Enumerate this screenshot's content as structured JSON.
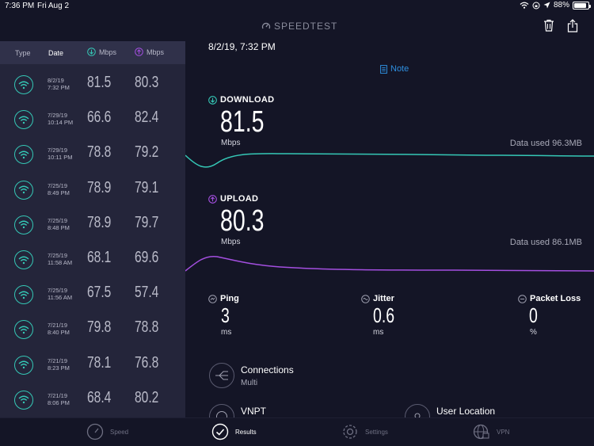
{
  "status_bar": {
    "time": "7:36 PM",
    "date": "Fri Aug 2",
    "battery": "88%",
    "battery_level": 0.88
  },
  "app": {
    "title": "SPEEDTEST"
  },
  "history": {
    "columns": {
      "type": "Type",
      "date": "Date",
      "download_unit": "Mbps",
      "upload_unit": "Mbps"
    },
    "rows": [
      {
        "date": "8/2/19",
        "time": "7:32 PM",
        "download": "81.5",
        "upload": "80.3"
      },
      {
        "date": "7/29/19",
        "time": "10:14 PM",
        "download": "66.6",
        "upload": "82.4"
      },
      {
        "date": "7/29/19",
        "time": "10:11 PM",
        "download": "78.8",
        "upload": "79.2"
      },
      {
        "date": "7/25/19",
        "time": "8:49 PM",
        "download": "78.9",
        "upload": "79.1"
      },
      {
        "date": "7/25/19",
        "time": "8:48 PM",
        "download": "78.9",
        "upload": "79.7"
      },
      {
        "date": "7/25/19",
        "time": "11:58 AM",
        "download": "68.1",
        "upload": "69.6"
      },
      {
        "date": "7/25/19",
        "time": "11:56 AM",
        "download": "67.5",
        "upload": "57.4"
      },
      {
        "date": "7/21/19",
        "time": "8:40 PM",
        "download": "79.8",
        "upload": "78.8"
      },
      {
        "date": "7/21/19",
        "time": "8:23 PM",
        "download": "78.1",
        "upload": "76.8"
      },
      {
        "date": "7/21/19",
        "time": "8:06 PM",
        "download": "68.4",
        "upload": "80.2"
      }
    ]
  },
  "detail": {
    "datetime": "8/2/19, 7:32 PM",
    "note_label": "Note",
    "download": {
      "label": "DOWNLOAD",
      "value": "81.5",
      "unit": "Mbps",
      "data_used": "Data used 96.3MB"
    },
    "upload": {
      "label": "UPLOAD",
      "value": "80.3",
      "unit": "Mbps",
      "data_used": "Data used 86.1MB"
    },
    "ping": {
      "label": "Ping",
      "value": "3",
      "unit": "ms"
    },
    "jitter": {
      "label": "Jitter",
      "value": "0.6",
      "unit": "ms"
    },
    "packet_loss": {
      "label": "Packet Loss",
      "value": "0",
      "unit": "%"
    },
    "connections": {
      "label": "Connections",
      "value": "Multi"
    },
    "isp": {
      "label": "VNPT"
    },
    "user_location": {
      "label": "User Location"
    }
  },
  "tabs": [
    {
      "label": "Speed",
      "active": false
    },
    {
      "label": "Results",
      "active": true
    },
    {
      "label": "Settings",
      "active": false
    },
    {
      "label": "VPN",
      "active": false
    }
  ],
  "colors": {
    "download": "#35c8b6",
    "upload": "#a44fe0",
    "accent": "#2e8ede",
    "background": "#141526",
    "panel": "#24253a"
  }
}
